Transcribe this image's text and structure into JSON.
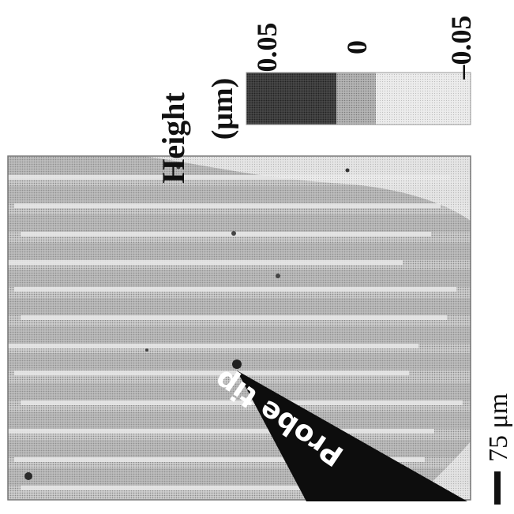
{
  "figure": {
    "probe_label": "Probe tip",
    "scale_bar_label": "75 μm"
  },
  "colorbar": {
    "title_line1": "Height",
    "title_line2": "(μm)",
    "tick_top": "0.05",
    "tick_mid": "0",
    "tick_bottom": "–0.05",
    "colors": {
      "high": "#3a3a3a",
      "mid": "#9c9c9c",
      "low": "#e2e2e2"
    }
  },
  "image": {
    "background_color": "#bdbdbd",
    "stripe_light_color": "#e6e6e6",
    "stripe_dark_color": "#9a9a9a"
  }
}
